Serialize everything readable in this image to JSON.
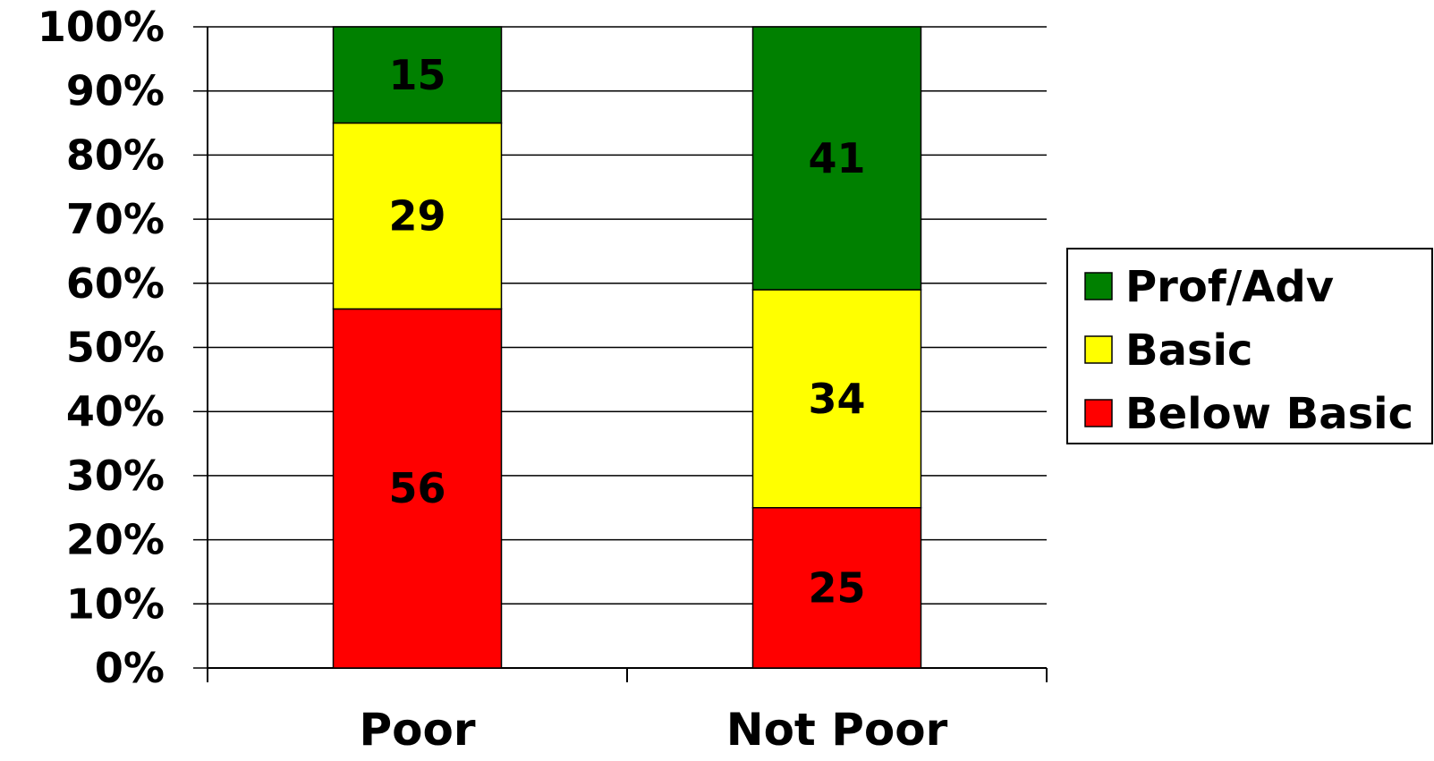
{
  "chart_data": {
    "type": "bar",
    "stacked": true,
    "categories": [
      "Poor",
      "Not Poor"
    ],
    "series": [
      {
        "name": "Below Basic",
        "values": [
          56,
          25
        ],
        "color": "#ff0000"
      },
      {
        "name": "Basic",
        "values": [
          29,
          34
        ],
        "color": "#ffff00"
      },
      {
        "name": "Prof/Adv",
        "values": [
          15,
          41
        ],
        "color": "#008000"
      }
    ],
    "value_labels": [
      [
        "56",
        "25"
      ],
      [
        "29",
        "34"
      ],
      [
        "15",
        "41"
      ]
    ],
    "yticks": [
      "0%",
      "10%",
      "20%",
      "30%",
      "40%",
      "50%",
      "60%",
      "70%",
      "80%",
      "90%",
      "100%"
    ],
    "ylim": [
      0,
      100
    ],
    "grid": true,
    "legend": {
      "position": "right",
      "entries": [
        "Prof/Adv",
        "Basic",
        "Below Basic"
      ]
    },
    "title": "",
    "xlabel": "",
    "ylabel": ""
  }
}
